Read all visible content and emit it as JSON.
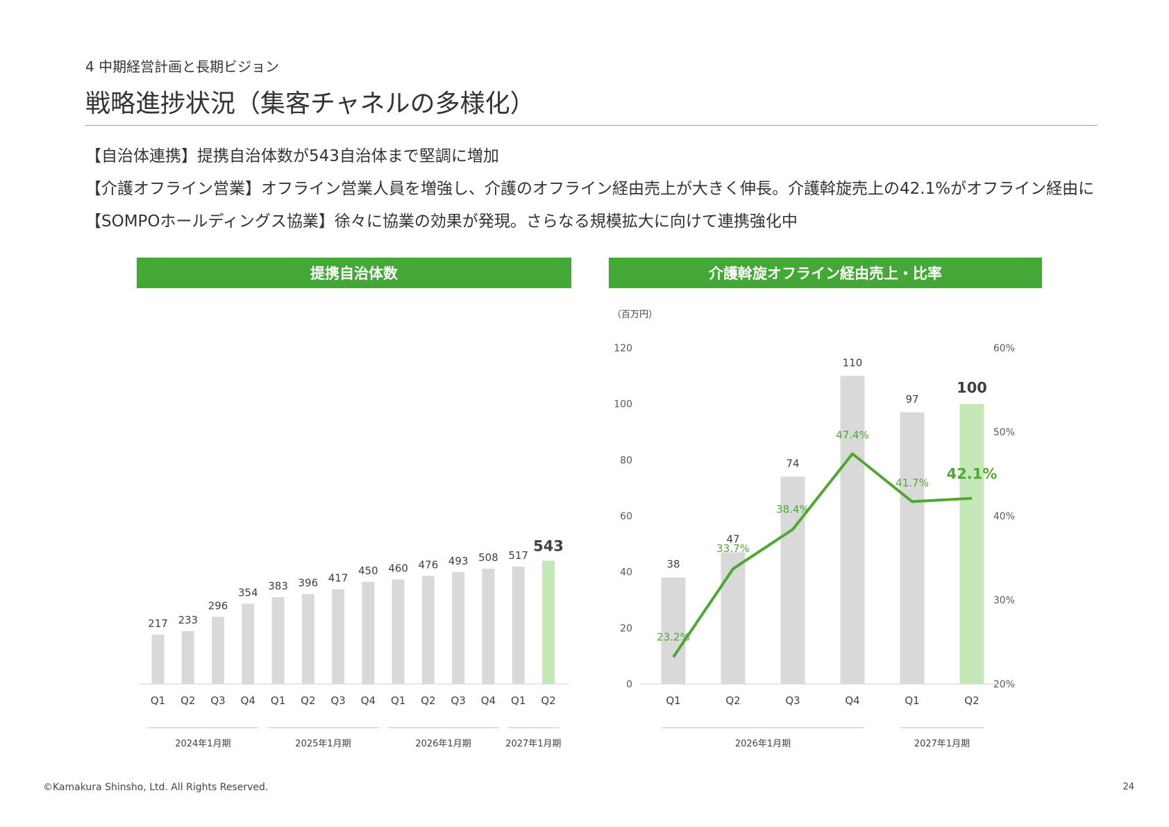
{
  "header": {
    "section_label": "4  中期経営計画と長期ビジョン",
    "title": "戦略進捗状況（集客チャネルの多様化）"
  },
  "bullets": [
    "【自治体連携】提携自治体数が543自治体まで堅調に増加",
    "【介護オフライン営業】オフライン営業人員を増強し、介護のオフライン経由売上が大きく伸長。介護斡旋売上の42.1%がオフライン経由に",
    "【SOMPOホールディングス協業】徐々に協業の効果が発現。さらなる規模拡大に向けて連携強化中"
  ],
  "footer": {
    "copyright": "©Kamakura Shinsho, Ltd. All Rights Reserved.",
    "page_number": "24"
  },
  "colors": {
    "accent_green": "#43a836",
    "bar_gray": "#d9d9d9",
    "highlight_bar": "#c5e8b7",
    "line_green": "#4ea832"
  },
  "chart_data": [
    {
      "type": "bar",
      "title": "提携自治体数",
      "categories": [
        "Q1",
        "Q2",
        "Q3",
        "Q4",
        "Q1",
        "Q2",
        "Q3",
        "Q4",
        "Q1",
        "Q2",
        "Q3",
        "Q4",
        "Q1",
        "Q2"
      ],
      "values": [
        217,
        233,
        296,
        354,
        383,
        396,
        417,
        450,
        460,
        476,
        493,
        508,
        517,
        543
      ],
      "highlight_index": 13,
      "groups": [
        {
          "label": "2024年1月期",
          "start": 0,
          "end": 3
        },
        {
          "label": "2025年1月期",
          "start": 4,
          "end": 7
        },
        {
          "label": "2026年1月期",
          "start": 8,
          "end": 11
        },
        {
          "label": "2027年1月期",
          "start": 12,
          "end": 13
        }
      ],
      "ylim": [
        0,
        600
      ]
    },
    {
      "type": "bar",
      "title": "介護斡旋オフライン経由売上・比率",
      "unit_label": "（百万円）",
      "categories": [
        "Q1",
        "Q2",
        "Q3",
        "Q4",
        "Q1",
        "Q2"
      ],
      "series": [
        {
          "values": [
            38,
            47,
            74,
            110,
            97,
            100
          ]
        },
        {
          "values": [
            23.2,
            33.7,
            38.4,
            47.4,
            41.7,
            42.1
          ],
          "axis": "right"
        }
      ],
      "ratio_labels": [
        "23.2%",
        "33.7%",
        "38.4%",
        "47.4%",
        "41.7%",
        "42.1%"
      ],
      "highlight_index": 5,
      "ylim": [
        0,
        120
      ],
      "y_ticks": [
        "0",
        "20",
        "40",
        "60",
        "80",
        "100",
        "120"
      ],
      "y2lim": [
        20,
        60
      ],
      "y2_ticks": [
        "20%",
        "30%",
        "40%",
        "50%",
        "60%"
      ],
      "groups": [
        {
          "label": "2026年1月期",
          "start": 0,
          "end": 3
        },
        {
          "label": "2027年1月期",
          "start": 4,
          "end": 5
        }
      ]
    }
  ]
}
